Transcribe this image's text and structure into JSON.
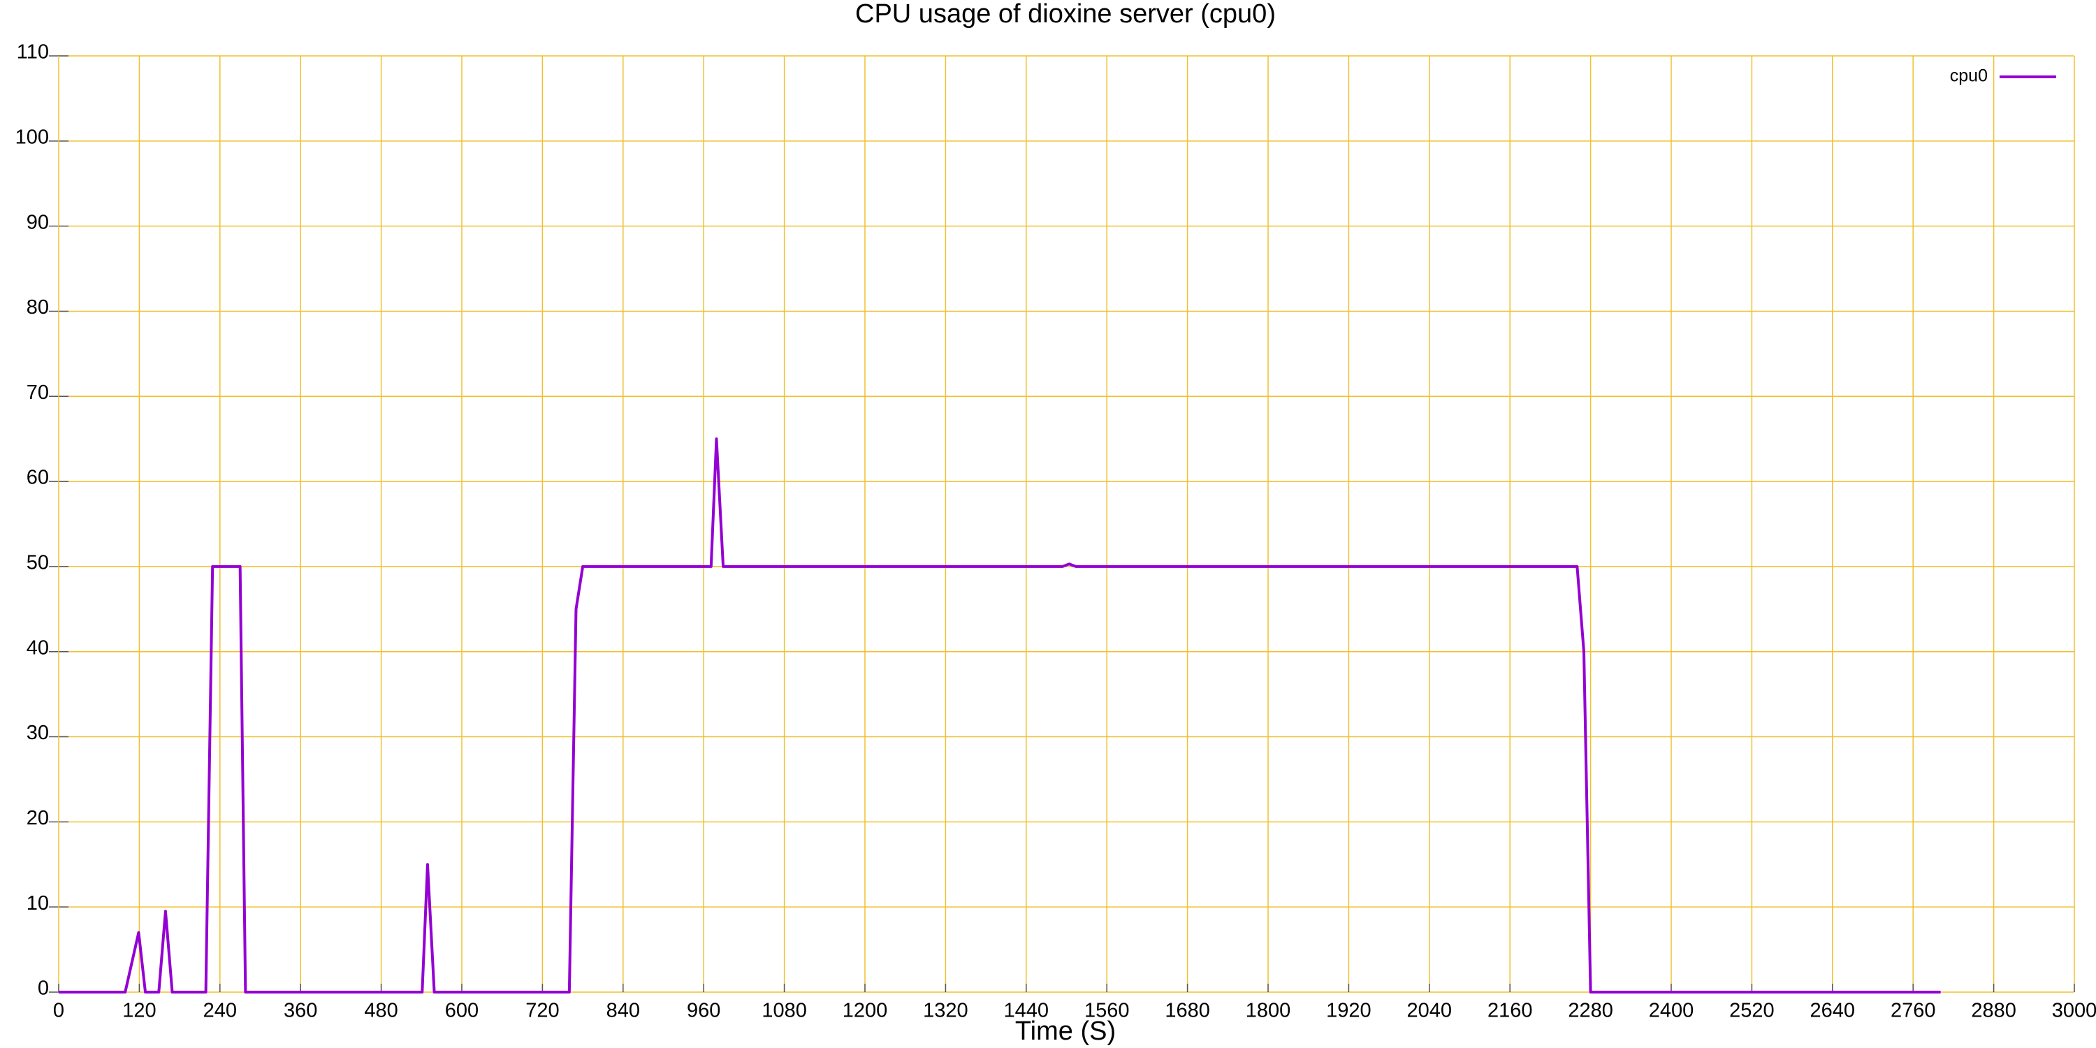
{
  "chart_data": {
    "type": "line",
    "title": "CPU usage of dioxine server (cpu0)",
    "x_label": "Time (S)",
    "x": [
      0,
      99,
      119,
      129,
      149,
      159,
      169,
      219,
      229,
      270,
      278,
      541,
      549,
      559,
      760,
      770,
      780,
      971,
      979,
      989,
      1494,
      1504,
      1514,
      2260,
      2270,
      2280,
      2801
    ],
    "series": [
      {
        "name": "cpu0",
        "color": "#9400d3",
        "values": [
          0,
          0,
          7,
          0,
          0,
          9.5,
          0,
          0,
          50,
          50,
          0,
          0,
          15,
          0,
          0,
          45,
          50,
          50,
          65,
          50,
          50,
          50.3,
          50,
          50,
          40,
          0,
          0
        ]
      }
    ],
    "xlim": [
      0,
      3000
    ],
    "xticks": [
      0,
      120,
      240,
      360,
      480,
      600,
      720,
      840,
      960,
      1080,
      1200,
      1320,
      1440,
      1560,
      1680,
      1800,
      1920,
      2040,
      2160,
      2280,
      2400,
      2520,
      2640,
      2760,
      2880,
      3000
    ],
    "ylim": [
      0,
      110
    ],
    "yticks": [
      0,
      10,
      20,
      30,
      40,
      50,
      60,
      70,
      80,
      90,
      100,
      110
    ],
    "grid": true,
    "grid_color": "#f0c030",
    "legend": "top-right"
  }
}
